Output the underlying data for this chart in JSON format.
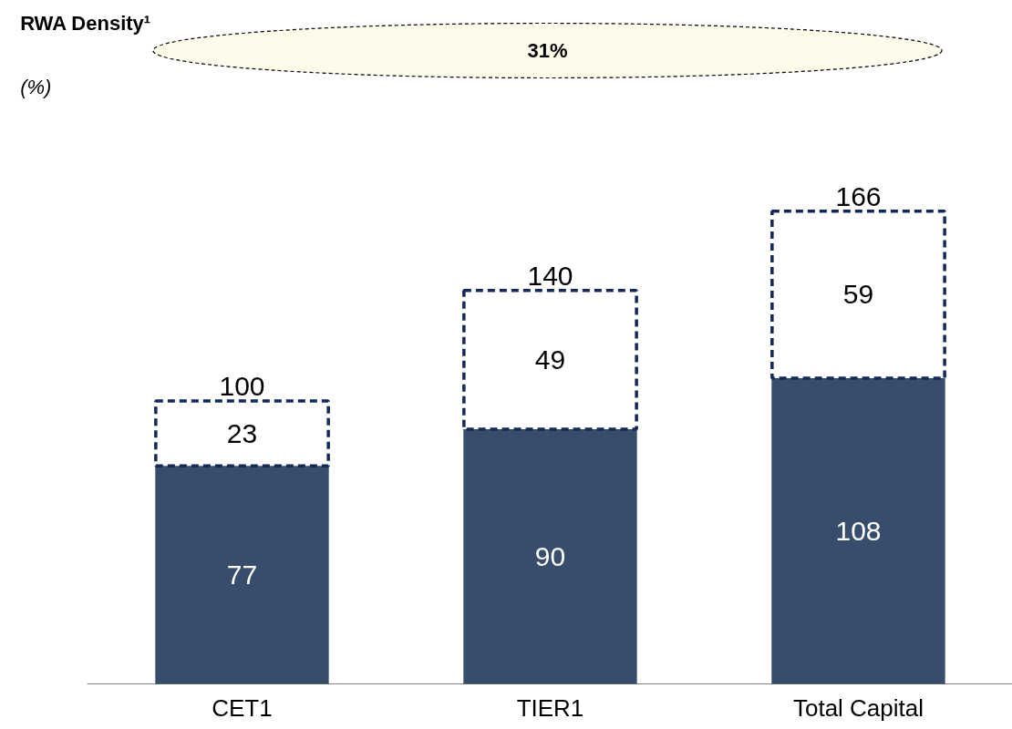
{
  "chart_data": {
    "type": "bar",
    "stacked": true,
    "data_labels": true,
    "categories": [
      "CET1",
      "TIER1",
      "Total Capital"
    ],
    "series": [
      {
        "color": "#384d6b",
        "values": [
          77,
          90,
          108
        ]
      },
      {
        "color": "#14295a",
        "line_style": "dashed",
        "values": [
          23,
          49,
          59
        ]
      }
    ],
    "totals": [
      "100",
      "140",
      "166"
    ],
    "annotations": [
      "RWA Density¹",
      "(%)",
      "31%"
    ]
  }
}
